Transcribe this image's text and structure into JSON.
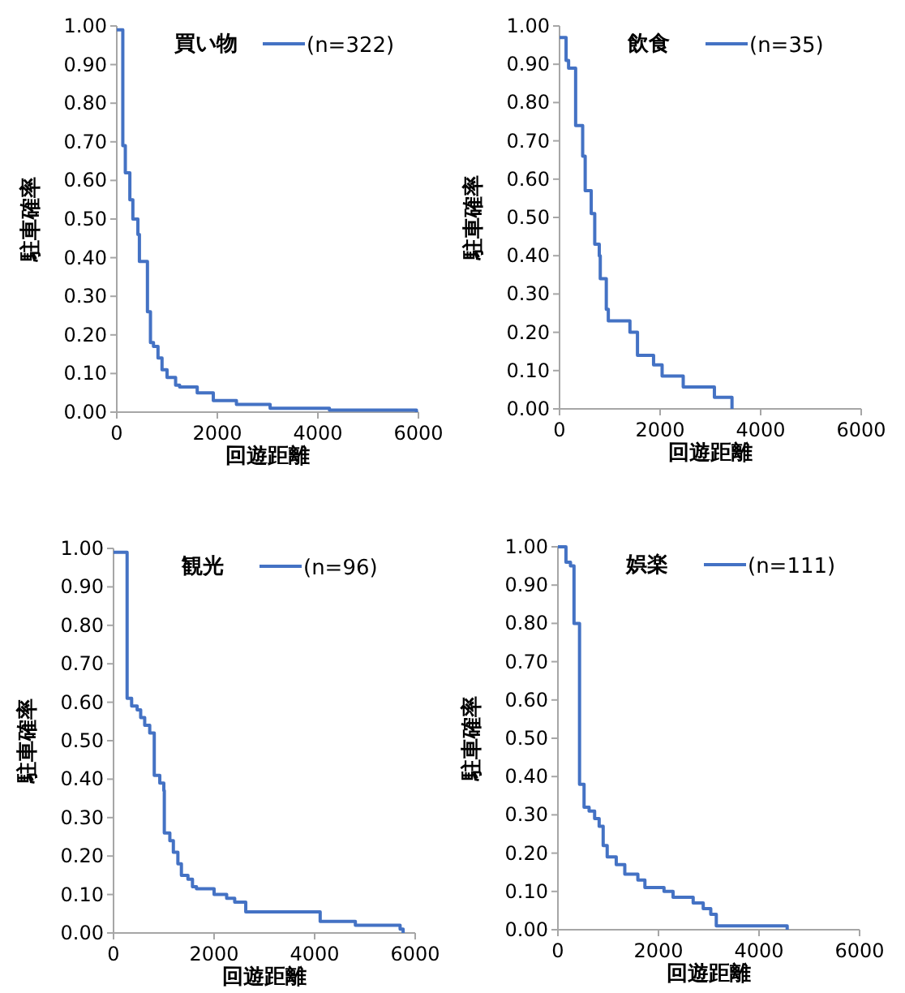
{
  "chart_data": [
    {
      "type": "step",
      "title": "買い物",
      "xlabel": "回遊距離",
      "ylabel": "駐車確率",
      "legend": "top right",
      "xlim": [
        0,
        6000
      ],
      "xticks": [
        0,
        2000,
        4000,
        6000
      ],
      "ylim": [
        0,
        1
      ],
      "yticks": [
        {
          "value": 0,
          "label": "0.00"
        },
        {
          "value": 0.1,
          "label": "0.10"
        },
        {
          "value": 0.2,
          "label": "0.20"
        },
        {
          "value": 0.3,
          "label": "0.30"
        },
        {
          "value": 0.4,
          "label": "0.40"
        },
        {
          "value": 0.5,
          "label": "0.50"
        },
        {
          "value": 0.6,
          "label": "0.60"
        },
        {
          "value": 0.7,
          "label": "0.70"
        },
        {
          "value": 0.8,
          "label": "0.80"
        },
        {
          "value": 0.9,
          "label": "0.90"
        },
        {
          "value": 1,
          "label": "1.00"
        }
      ],
      "series": [
        {
          "name": "(n=322)",
          "color": "#4472c4",
          "x": [
            0,
            120,
            170,
            260,
            320,
            420,
            450,
            610,
            670,
            730,
            820,
            900,
            1000,
            1170,
            1250,
            1600,
            1920,
            2380,
            3050,
            4230,
            5960
          ],
          "values": [
            0.99,
            0.69,
            0.62,
            0.55,
            0.5,
            0.46,
            0.39,
            0.26,
            0.18,
            0.17,
            0.14,
            0.11,
            0.09,
            0.07,
            0.065,
            0.05,
            0.03,
            0.02,
            0.01,
            0.005,
            0
          ]
        }
      ]
    },
    {
      "type": "step",
      "title": "飲食",
      "xlabel": "回遊距離",
      "ylabel": "駐車確率",
      "legend": "top right",
      "xlim": [
        0,
        6000
      ],
      "xticks": [
        0,
        2000,
        4000,
        6000
      ],
      "ylim": [
        0,
        1
      ],
      "yticks": [
        {
          "value": 0,
          "label": "0.00"
        },
        {
          "value": 0.1,
          "label": "0.10"
        },
        {
          "value": 0.2,
          "label": "0.20"
        },
        {
          "value": 0.3,
          "label": "0.30"
        },
        {
          "value": 0.4,
          "label": "0.40"
        },
        {
          "value": 0.5,
          "label": "0.50"
        },
        {
          "value": 0.6,
          "label": "0.60"
        },
        {
          "value": 0.7,
          "label": "0.70"
        },
        {
          "value": 0.8,
          "label": "0.80"
        },
        {
          "value": 0.9,
          "label": "0.90"
        },
        {
          "value": 1,
          "label": "1.00"
        }
      ],
      "series": [
        {
          "name": "(n=35)",
          "color": "#4472c4",
          "x": [
            0,
            130,
            180,
            320,
            460,
            510,
            630,
            700,
            790,
            810,
            930,
            970,
            1400,
            1550,
            1870,
            2040,
            2460,
            3080,
            3430
          ],
          "values": [
            0.97,
            0.91,
            0.89,
            0.74,
            0.66,
            0.57,
            0.51,
            0.43,
            0.4,
            0.34,
            0.26,
            0.23,
            0.2,
            0.14,
            0.115,
            0.086,
            0.057,
            0.03,
            0
          ]
        }
      ]
    },
    {
      "type": "step",
      "title": "観光",
      "xlabel": "回遊距離",
      "ylabel": "駐車確率",
      "legend": "top right",
      "xlim": [
        0,
        6000
      ],
      "xticks": [
        0,
        2000,
        4000,
        6000
      ],
      "ylim": [
        0,
        1
      ],
      "yticks": [
        {
          "value": 0,
          "label": "0.00"
        },
        {
          "value": 0.1,
          "label": "0.10"
        },
        {
          "value": 0.2,
          "label": "0.20"
        },
        {
          "value": 0.3,
          "label": "0.30"
        },
        {
          "value": 0.4,
          "label": "0.40"
        },
        {
          "value": 0.5,
          "label": "0.50"
        },
        {
          "value": 0.6,
          "label": "0.60"
        },
        {
          "value": 0.7,
          "label": "0.70"
        },
        {
          "value": 0.8,
          "label": "0.80"
        },
        {
          "value": 0.9,
          "label": "0.90"
        },
        {
          "value": 1,
          "label": "1.00"
        }
      ],
      "series": [
        {
          "name": "(n=96)",
          "color": "#4472c4",
          "x": [
            0,
            270,
            360,
            470,
            540,
            620,
            720,
            810,
            920,
            1000,
            1010,
            1120,
            1190,
            1280,
            1350,
            1480,
            1570,
            1650,
            2000,
            2250,
            2410,
            2630,
            4110,
            4810,
            5700,
            5760
          ],
          "values": [
            0.99,
            0.61,
            0.59,
            0.58,
            0.56,
            0.54,
            0.52,
            0.41,
            0.39,
            0.37,
            0.26,
            0.24,
            0.21,
            0.18,
            0.15,
            0.14,
            0.12,
            0.115,
            0.1,
            0.09,
            0.08,
            0.055,
            0.03,
            0.02,
            0.01,
            0
          ]
        }
      ]
    },
    {
      "type": "step",
      "title": "娯楽",
      "xlabel": "回遊距離",
      "ylabel": "駐車確率",
      "legend": "top right",
      "xlim": [
        0,
        6000
      ],
      "xticks": [
        0,
        2000,
        4000,
        6000
      ],
      "ylim": [
        0,
        1
      ],
      "yticks": [
        {
          "value": 0,
          "label": "0.00"
        },
        {
          "value": 0.1,
          "label": "0.10"
        },
        {
          "value": 0.2,
          "label": "0.20"
        },
        {
          "value": 0.3,
          "label": "0.30"
        },
        {
          "value": 0.4,
          "label": "0.40"
        },
        {
          "value": 0.5,
          "label": "0.50"
        },
        {
          "value": 0.6,
          "label": "0.60"
        },
        {
          "value": 0.7,
          "label": "0.70"
        },
        {
          "value": 0.8,
          "label": "0.80"
        },
        {
          "value": 0.9,
          "label": "0.90"
        },
        {
          "value": 1,
          "label": "1.00"
        }
      ],
      "series": [
        {
          "name": "(n=111)",
          "color": "#4472c4",
          "x": [
            0,
            160,
            250,
            320,
            430,
            520,
            620,
            730,
            820,
            900,
            980,
            1160,
            1330,
            1590,
            1730,
            2110,
            2290,
            2690,
            2890,
            3040,
            3150,
            4560
          ],
          "values": [
            1.0,
            0.96,
            0.95,
            0.8,
            0.38,
            0.32,
            0.31,
            0.29,
            0.27,
            0.22,
            0.19,
            0.17,
            0.145,
            0.13,
            0.11,
            0.1,
            0.085,
            0.07,
            0.055,
            0.04,
            0.01,
            0
          ]
        }
      ]
    }
  ]
}
